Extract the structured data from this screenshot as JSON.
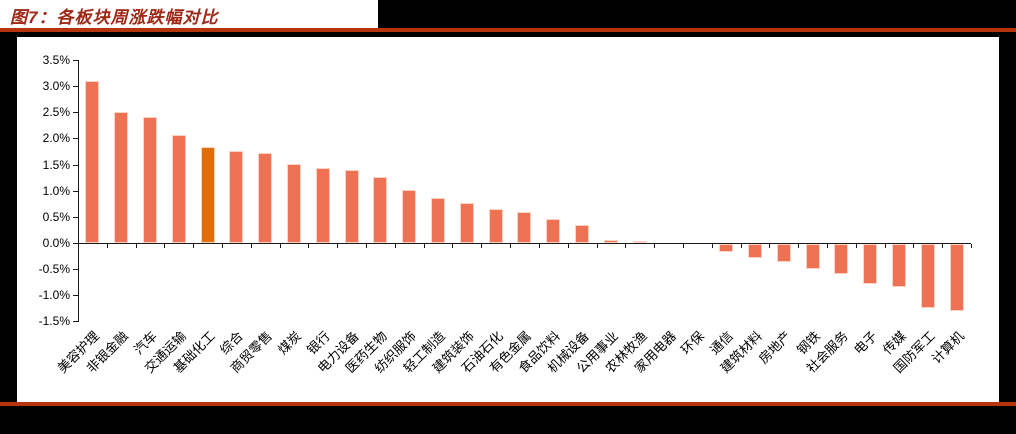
{
  "figure": {
    "title": "图7：各板块周涨跌幅对比",
    "title_color": "#9E2715",
    "rule_color": "#B5340C",
    "frame_color": "#000000",
    "canvas_color": "#FFFFFF"
  },
  "chart_data": {
    "type": "bar",
    "title": "各板块周涨跌幅对比",
    "categories": [
      "美容护理",
      "非银金融",
      "汽车",
      "交通运输",
      "基础化工",
      "综合",
      "商贸零售",
      "煤炭",
      "银行",
      "电力设备",
      "医药生物",
      "纺织服饰",
      "轻工制造",
      "建筑装饰",
      "石油石化",
      "有色金属",
      "食品饮料",
      "机械设备",
      "公用事业",
      "农林牧渔",
      "家用电器",
      "环保",
      "通信",
      "建筑材料",
      "房地产",
      "钢铁",
      "社会服务",
      "电子",
      "传媒",
      "国防军工",
      "计算机"
    ],
    "values": [
      3.09,
      2.5,
      2.41,
      2.07,
      1.83,
      1.75,
      1.73,
      1.51,
      1.43,
      1.39,
      1.27,
      1.01,
      0.86,
      0.76,
      0.65,
      0.59,
      0.46,
      0.34,
      0.06,
      0.03,
      0.0,
      0.0,
      -0.15,
      -0.27,
      -0.35,
      -0.48,
      -0.57,
      -0.77,
      -0.82,
      -1.23,
      -1.29
    ],
    "unit": "percent",
    "highlight_category": "基础化工",
    "highlight_index": 4,
    "bar_color": "#EE7154",
    "highlight_color": "#E06D06",
    "xlabel": "",
    "ylabel": "",
    "ylim": [
      -1.5,
      3.5
    ],
    "y_tick_values": [
      3.5,
      3.0,
      2.5,
      2.0,
      1.5,
      1.0,
      0.5,
      0.0,
      -0.5,
      -1.0,
      -1.5
    ],
    "y_tick_labels": [
      "3.5%",
      "3.0%",
      "2.5%",
      "2.0%",
      "1.5%",
      "1.0%",
      "0.5%",
      "0.0%",
      "-0.5%",
      "-1.0%",
      "-1.5%"
    ],
    "grid": false,
    "legend": "none"
  }
}
